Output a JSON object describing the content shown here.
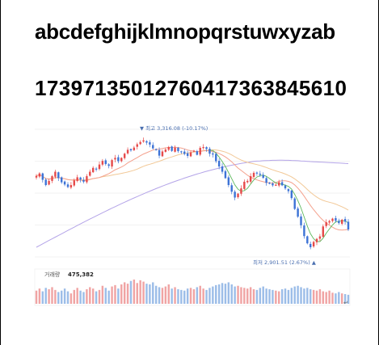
{
  "headings": {
    "letters": "abcdefghijklmnopqrstuwxyzab",
    "digits": "17397135012760417363845610"
  },
  "chart_data": {
    "type": "candlestick",
    "title": "",
    "high_annotation": "▼ 최고 3,316.08 (-10.17%)",
    "low_annotation": "최저 2,901.51 (2.67%) ▲",
    "volume_label": "거래량",
    "volume_value": "475,382",
    "colors": {
      "up": "#e64a4a",
      "down": "#3d73d6",
      "ma5": "#5cb85c",
      "ma20": "#f4a08c",
      "ma60": "#f2c896",
      "ma120": "#b4a4e8",
      "vol_up": "#f0a4a4",
      "vol_down": "#9cbde8",
      "grid": "#eeeeee"
    },
    "ylim": [
      2880,
      3340
    ],
    "closes": [
      3172,
      3181,
      3158,
      3139,
      3154,
      3171,
      3187,
      3164,
      3149,
      3141,
      3132,
      3139,
      3156,
      3167,
      3159,
      3151,
      3171,
      3187,
      3201,
      3196,
      3213,
      3226,
      3215,
      3208,
      3229,
      3237,
      3225,
      3237,
      3252,
      3266,
      3264,
      3274,
      3286,
      3294,
      3300,
      3292,
      3285,
      3271,
      3265,
      3245,
      3260,
      3267,
      3276,
      3262,
      3274,
      3261,
      3260,
      3251,
      3244,
      3257,
      3263,
      3248,
      3273,
      3276,
      3269,
      3252,
      3249,
      3225,
      3206,
      3187,
      3164,
      3139,
      3115,
      3094,
      3108,
      3127,
      3151,
      3154,
      3171,
      3183,
      3181,
      3176,
      3165,
      3147,
      3145,
      3138,
      3140,
      3149,
      3138,
      3127,
      3117,
      3092,
      3053,
      3025,
      2994,
      2955,
      2929,
      2915,
      2934,
      2945,
      2954,
      2990,
      3005,
      3009,
      3018,
      3010,
      3002,
      3014,
      3007,
      2979
    ],
    "volumes": [
      38,
      44,
      36,
      46,
      42,
      48,
      40,
      34,
      38,
      44,
      36,
      30,
      40,
      46,
      38,
      34,
      42,
      48,
      44,
      36,
      40,
      52,
      46,
      38,
      50,
      54,
      44,
      56,
      62,
      58,
      66,
      70,
      60,
      68,
      64,
      58,
      56,
      62,
      52,
      48,
      46,
      50,
      56,
      44,
      48,
      42,
      40,
      38,
      44,
      46,
      42,
      48,
      52,
      44,
      40,
      46,
      50,
      54,
      56,
      60,
      58,
      62,
      56,
      50,
      52,
      48,
      46,
      44,
      48,
      42,
      40,
      46,
      50,
      44,
      42,
      40,
      38,
      36,
      42,
      44,
      40,
      46,
      50,
      52,
      48,
      44,
      46,
      42,
      40,
      38,
      42,
      36,
      34,
      38,
      32,
      30,
      34,
      30,
      28,
      26
    ]
  }
}
